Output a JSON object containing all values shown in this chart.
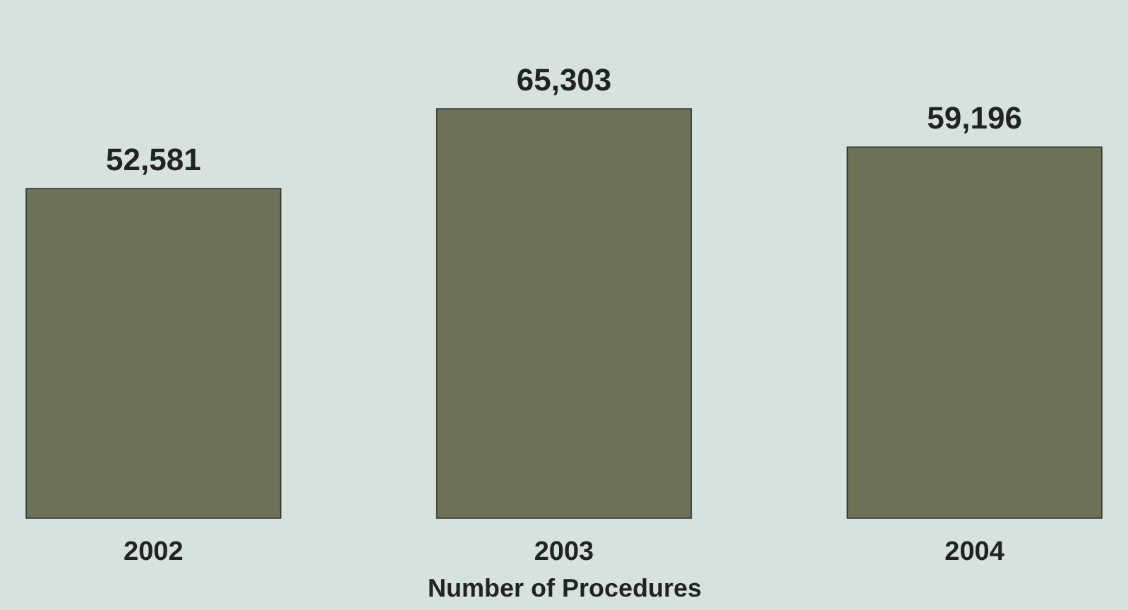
{
  "chart_data": {
    "type": "bar",
    "xlabel": "Number of Procedures",
    "categories": [
      "2002",
      "2003",
      "2004"
    ],
    "values": [
      52581,
      65303,
      59196
    ],
    "color": "#6e7058",
    "value_labels": [
      "52,581",
      "65,303",
      "59,196"
    ]
  }
}
